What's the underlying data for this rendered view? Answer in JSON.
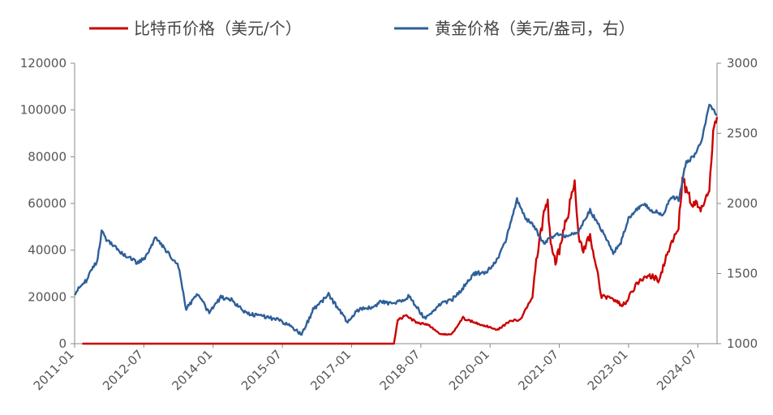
{
  "chart_data": {
    "type": "line",
    "title": "",
    "xlabel": "",
    "ylabel": "",
    "x_tick_labels": [
      "2011-01",
      "2012-07",
      "2014-01",
      "2015-07",
      "2017-01",
      "2018-07",
      "2020-01",
      "2021-07",
      "2023-01",
      "2024-07"
    ],
    "x_range": [
      "2011-01",
      "2024-12"
    ],
    "y_left": {
      "range": [
        0,
        120000
      ],
      "ticks": [
        0,
        20000,
        40000,
        60000,
        80000,
        100000,
        120000
      ]
    },
    "y_right": {
      "range": [
        1000,
        3000
      ],
      "ticks": [
        1000,
        1500,
        2000,
        2500,
        3000
      ]
    },
    "grid": false,
    "legend_position": "top",
    "series": [
      {
        "name": "比特币价格（美元/个）",
        "axis": "left",
        "color": "#cc0000",
        "x": [
          "2011-03",
          "2017-12",
          "2018-01",
          "2018-03",
          "2018-06",
          "2018-09",
          "2018-12",
          "2019-03",
          "2019-06",
          "2019-09",
          "2019-12",
          "2020-03",
          "2020-06",
          "2020-09",
          "2020-12",
          "2021-01",
          "2021-03",
          "2021-04",
          "2021-05",
          "2021-06",
          "2021-07",
          "2021-08",
          "2021-10",
          "2021-11",
          "2021-12",
          "2022-01",
          "2022-03",
          "2022-05",
          "2022-06",
          "2022-09",
          "2022-11",
          "2022-12",
          "2023-03",
          "2023-06",
          "2023-09",
          "2023-12",
          "2024-02",
          "2024-03",
          "2024-05",
          "2024-08",
          "2024-10",
          "2024-11",
          "2024-12"
        ],
        "values": [
          0,
          0,
          10000,
          12000,
          9000,
          8000,
          4000,
          4000,
          11000,
          9000,
          7500,
          6000,
          9500,
          10500,
          20000,
          35000,
          55000,
          60000,
          40000,
          35000,
          40000,
          48000,
          61000,
          68000,
          47000,
          40000,
          45000,
          30000,
          20000,
          19500,
          16500,
          17000,
          25000,
          30000,
          27000,
          43000,
          50000,
          70000,
          62000,
          58000,
          65000,
          90000,
          97000
        ]
      },
      {
        "name": "黄金价格（美元/盎司，右）",
        "axis": "right",
        "color": "#2e5f99",
        "x": [
          "2011-01",
          "2011-04",
          "2011-07",
          "2011-08",
          "2011-09",
          "2011-11",
          "2012-01",
          "2012-05",
          "2012-07",
          "2012-10",
          "2013-01",
          "2013-04",
          "2013-06",
          "2013-09",
          "2013-12",
          "2014-03",
          "2014-06",
          "2014-09",
          "2014-12",
          "2015-03",
          "2015-06",
          "2015-09",
          "2015-12",
          "2016-03",
          "2016-07",
          "2016-12",
          "2017-03",
          "2017-06",
          "2017-09",
          "2017-12",
          "2018-04",
          "2018-08",
          "2018-12",
          "2019-03",
          "2019-06",
          "2019-09",
          "2019-12",
          "2020-03",
          "2020-05",
          "2020-08",
          "2020-10",
          "2020-12",
          "2021-03",
          "2021-06",
          "2021-09",
          "2021-12",
          "2022-03",
          "2022-06",
          "2022-09",
          "2022-11",
          "2023-01",
          "2023-03",
          "2023-05",
          "2023-07",
          "2023-10",
          "2023-12",
          "2024-02",
          "2024-04",
          "2024-06",
          "2024-08",
          "2024-10",
          "2024-12"
        ],
        "values": [
          1360,
          1450,
          1600,
          1800,
          1750,
          1700,
          1650,
          1580,
          1600,
          1750,
          1660,
          1550,
          1250,
          1350,
          1220,
          1330,
          1310,
          1230,
          1200,
          1190,
          1170,
          1130,
          1060,
          1240,
          1350,
          1150,
          1250,
          1260,
          1300,
          1280,
          1340,
          1180,
          1280,
          1310,
          1400,
          1500,
          1510,
          1600,
          1730,
          2030,
          1900,
          1850,
          1720,
          1780,
          1760,
          1800,
          1950,
          1810,
          1650,
          1720,
          1900,
          1950,
          2000,
          1950,
          1920,
          2050,
          2030,
          2300,
          2330,
          2450,
          2700,
          2630
        ]
      }
    ]
  }
}
